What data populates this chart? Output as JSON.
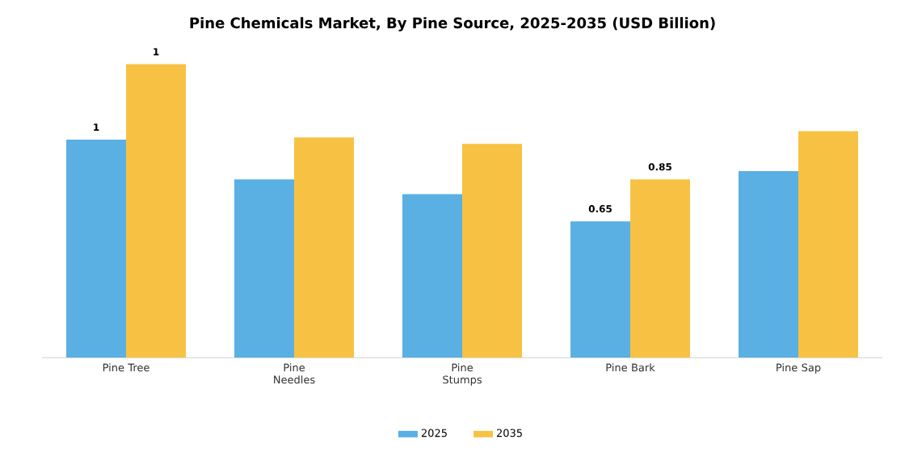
{
  "chart_data": {
    "type": "bar",
    "title": "Pine Chemicals Market, By Pine Source, 2025-2035 (USD Billion)",
    "categories": [
      "Pine Tree",
      "Pine Needles",
      "Pine Stumps",
      "Pine Bark",
      "Pine Sap"
    ],
    "series": [
      {
        "name": "2025",
        "color": "#5aafe3",
        "values": [
          1.04,
          0.85,
          0.78,
          0.65,
          0.89
        ],
        "value_labels": [
          "1",
          null,
          null,
          "0.65",
          null
        ]
      },
      {
        "name": "2035",
        "color": "#f7c244",
        "values": [
          1.4,
          1.05,
          1.02,
          0.85,
          1.08
        ],
        "value_labels": [
          "1",
          null,
          null,
          "0.85",
          null
        ]
      }
    ],
    "legend": "bottom",
    "grid": false
  }
}
